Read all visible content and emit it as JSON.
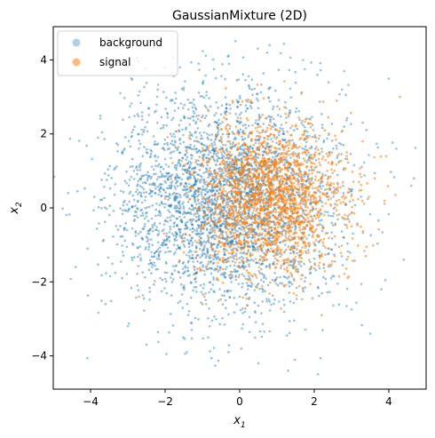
{
  "chart_data": {
    "type": "scatter",
    "title": "GaussianMixture (2D)",
    "xlabel": "x",
    "xlabel_sub": "1",
    "ylabel": "x",
    "ylabel_sub": "2",
    "xlim": [
      -5.0,
      5.0
    ],
    "ylim": [
      -4.9,
      4.9
    ],
    "x_ticks": [
      -4,
      -2,
      0,
      2,
      4
    ],
    "y_ticks": [
      -4,
      -2,
      0,
      2,
      4
    ],
    "x_tick_labels": [
      "−4",
      "−2",
      "0",
      "2",
      "4"
    ],
    "y_tick_labels": [
      "−4",
      "−2",
      "0",
      "2",
      "4"
    ],
    "grid": false,
    "legend": {
      "placement": "top-left"
    },
    "series": [
      {
        "name": "background",
        "color": "#1f77b4",
        "distribution": {
          "mean": [
            -0.3,
            0.2
          ],
          "std": [
            1.45,
            1.45
          ]
        },
        "points": [
          [
            -4.6,
            0.4
          ],
          [
            -4.4,
            -1.6
          ],
          [
            -3.8,
            1.9
          ],
          [
            -3.6,
            -2.6
          ],
          [
            -3.9,
            0.3
          ],
          [
            -3.2,
            3.1
          ],
          [
            -2.9,
            3.5
          ],
          [
            -2.5,
            -3.7
          ],
          [
            -1.6,
            3.8
          ],
          [
            -1.1,
            3.9
          ],
          [
            -0.3,
            -3.9
          ],
          [
            0.5,
            -4.2
          ],
          [
            1.3,
            -4.4
          ],
          [
            2.1,
            -4.5
          ],
          [
            2.8,
            3.7
          ],
          [
            3.3,
            2.3
          ],
          [
            3.5,
            -3.4
          ],
          [
            4.2,
            1.6
          ],
          [
            4.6,
            0.6
          ],
          [
            4.4,
            -1.4
          ],
          [
            -3.0,
            -3.2
          ],
          [
            3.8,
            -2.2
          ],
          [
            -2.2,
            3.2
          ],
          [
            0.8,
            4.4
          ],
          [
            1.7,
            4.0
          ]
        ]
      },
      {
        "name": "signal",
        "color": "#ff7f0e",
        "distribution": {
          "mean": [
            0.8,
            0.25
          ],
          "std": [
            1.0,
            1.0
          ]
        },
        "points": [
          [
            4.3,
            3.0
          ],
          [
            -2.7,
            -2.4
          ],
          [
            3.3,
            1.8
          ],
          [
            2.6,
            2.9
          ],
          [
            3.0,
            -0.5
          ],
          [
            -1.1,
            2.5
          ],
          [
            2.2,
            -2.9
          ],
          [
            -0.9,
            -2.6
          ],
          [
            0.3,
            2.9
          ],
          [
            3.2,
            0.7
          ]
        ]
      }
    ]
  }
}
